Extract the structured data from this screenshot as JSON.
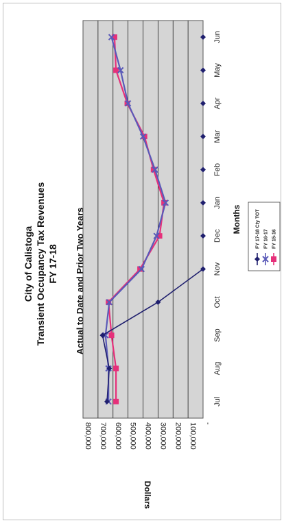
{
  "chart_data": {
    "type": "line",
    "title": [
      "City of Calistoga",
      "Transient Occupancy Tax Revenues",
      "FY 17-18"
    ],
    "subtitle": "Actual to Date and Prior Two Years",
    "xlabel": "Months",
    "ylabel": "Dollars",
    "categories": [
      "Jul",
      "Aug",
      "Sep",
      "Oct",
      "Nov",
      "Dec",
      "Jan",
      "Feb",
      "Mar",
      "Apr",
      "May",
      "Jun"
    ],
    "ylim": [
      0,
      800000
    ],
    "yticks": [
      "-",
      "100,000",
      "200,000",
      "300,000",
      "400,000",
      "500,000",
      "600,000",
      "700,000",
      "800,000"
    ],
    "grid": true,
    "legend_position": "bottom-right",
    "series": [
      {
        "name": "FY 17-18 Cty TOT",
        "color": "#1f1f6e",
        "marker": "diamond",
        "values": [
          640000,
          625000,
          670000,
          300000,
          0,
          0,
          0,
          0,
          0,
          0,
          0,
          0
        ]
      },
      {
        "name": "FY 16-17",
        "color": "#5a5ab8",
        "marker": "x",
        "values": [
          630000,
          630000,
          650000,
          625000,
          410000,
          310000,
          250000,
          320000,
          400000,
          500000,
          550000,
          610000
        ]
      },
      {
        "name": "FY 15-16",
        "color": "#e6307a",
        "marker": "square",
        "values": [
          580000,
          580000,
          610000,
          630000,
          420000,
          290000,
          260000,
          330000,
          390000,
          505000,
          580000,
          590000
        ]
      }
    ]
  }
}
